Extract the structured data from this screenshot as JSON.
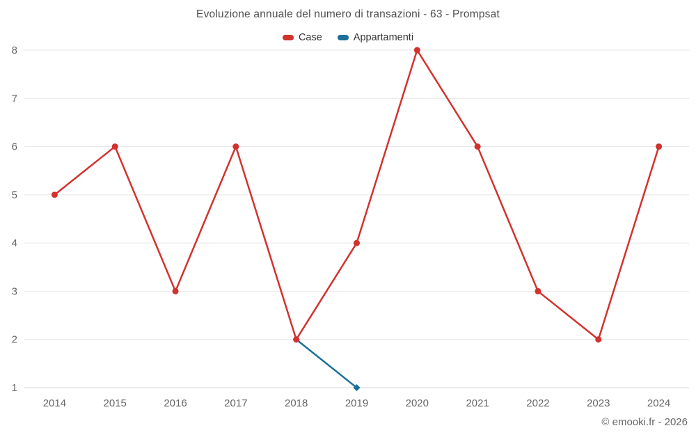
{
  "chart": {
    "title": "Evoluzione annuale del numero di transazioni - 63 - Prompsat",
    "watermark": "© emooki.fr - 2026"
  },
  "chart_data": {
    "type": "line",
    "title": "Evoluzione annuale del numero di transazioni - 63 - Prompsat",
    "categories": [
      "2014",
      "2015",
      "2016",
      "2017",
      "2018",
      "2019",
      "2020",
      "2021",
      "2022",
      "2023",
      "2024"
    ],
    "series": [
      {
        "name": "Case",
        "color": "#d2322e",
        "marker": "circle",
        "x": [
          "2014",
          "2015",
          "2016",
          "2017",
          "2018",
          "2019",
          "2020",
          "2021",
          "2022",
          "2023",
          "2024"
        ],
        "values": [
          5,
          6,
          3,
          6,
          2,
          4,
          8,
          6,
          3,
          2,
          6
        ]
      },
      {
        "name": "Appartamenti",
        "color": "#1b6f9b",
        "marker": "diamond",
        "x": [
          "2018",
          "2019"
        ],
        "values": [
          2,
          1
        ]
      }
    ],
    "ylim": [
      1,
      8
    ],
    "yticks": [
      1,
      2,
      3,
      4,
      5,
      6,
      7,
      8
    ],
    "grid": true,
    "legend_position": "top",
    "watermark": "© emooki.fr - 2026"
  }
}
